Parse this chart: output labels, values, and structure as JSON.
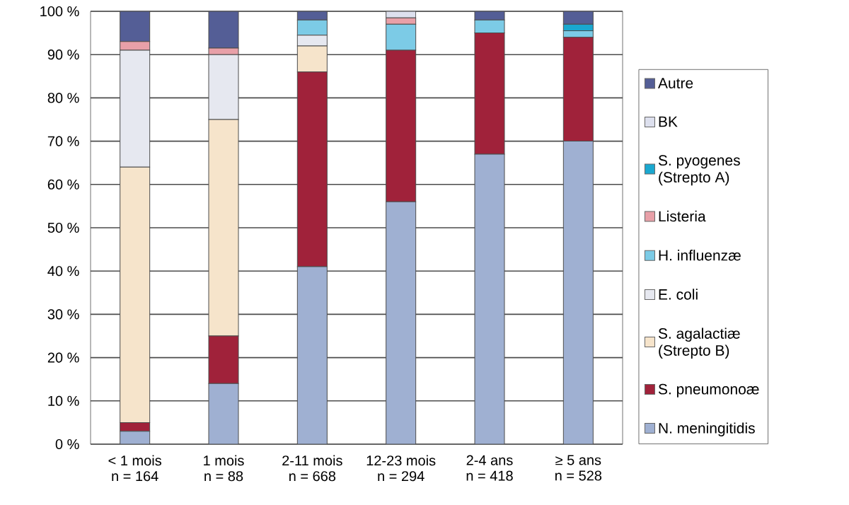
{
  "chart_data": {
    "type": "bar",
    "stacked": true,
    "categories": [
      "< 1 mois\nn = 164",
      "1 mois\nn = 88",
      "2-11 mois\nn = 668",
      "12-23 mois\nn = 294",
      "2-4 ans\nn = 418",
      "≥ 5 ans\nn = 528"
    ],
    "series": [
      {
        "name": "N. meningitidis",
        "color": "#9fb0d2",
        "values": [
          3,
          14,
          41,
          56,
          67,
          70
        ]
      },
      {
        "name": "S. pneumonoæ",
        "color": "#a0223a",
        "values": [
          2,
          11,
          45,
          35,
          28,
          24
        ]
      },
      {
        "name": "S. agalactiæ\n(Strepto B)",
        "color": "#f6e4cb",
        "values": [
          59,
          50,
          6,
          0,
          0,
          0
        ]
      },
      {
        "name": "E. coli",
        "color": "#e6e8f0",
        "values": [
          27,
          15,
          2.5,
          0,
          0,
          0
        ]
      },
      {
        "name": "H. influenzæ",
        "color": "#7ccbe6",
        "values": [
          0,
          0,
          3.5,
          6,
          3,
          1.5
        ]
      },
      {
        "name": "Listeria",
        "color": "#e8a0a8",
        "values": [
          2,
          1.5,
          0,
          1.5,
          0,
          0
        ]
      },
      {
        "name": "S. pyogenes\n(Strepto A)",
        "color": "#1aa8d0",
        "values": [
          0,
          0,
          0,
          0,
          0,
          1.5
        ]
      },
      {
        "name": "BK",
        "color": "#dde0ee",
        "values": [
          0,
          0,
          0,
          1.5,
          0,
          0
        ]
      },
      {
        "name": "Autre",
        "color": "#545e96",
        "values": [
          7,
          8.5,
          2,
          0,
          2,
          3
        ]
      }
    ],
    "ylim": [
      0,
      100
    ],
    "yticks": [
      {
        "value": 0,
        "label": "0 %"
      },
      {
        "value": 10,
        "label": "10 %"
      },
      {
        "value": 20,
        "label": "20 %"
      },
      {
        "value": 30,
        "label": "30 %"
      },
      {
        "value": 40,
        "label": "40 %"
      },
      {
        "value": 50,
        "label": "50 %"
      },
      {
        "value": 60,
        "label": "60 %"
      },
      {
        "value": 70,
        "label": "70 %"
      },
      {
        "value": 80,
        "label": "80 %"
      },
      {
        "value": 90,
        "label": "90 %"
      },
      {
        "value": 100,
        "label": "100 %"
      }
    ],
    "grid": "y",
    "legend": "right"
  }
}
